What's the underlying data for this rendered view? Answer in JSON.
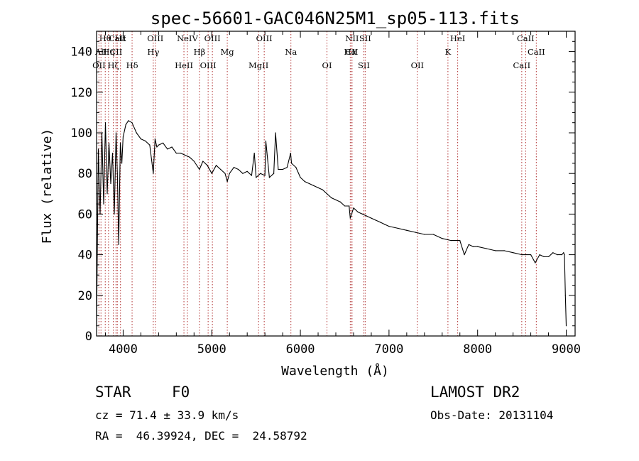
{
  "chart_data": {
    "type": "line",
    "title": "spec-56601-GAC046N25M1_sp05-113.fits",
    "xlabel": "Wavelength (Å)",
    "ylabel": "Flux (relative)",
    "xlim": [
      3700,
      9100
    ],
    "ylim": [
      0,
      150
    ],
    "x_ticks": [
      4000,
      5000,
      6000,
      7000,
      8000,
      9000
    ],
    "y_ticks": [
      0,
      20,
      40,
      60,
      80,
      100,
      120,
      140
    ],
    "grid": false,
    "series": [
      {
        "color": "#000000",
        "x": [
          3700,
          3720,
          3740,
          3760,
          3780,
          3800,
          3820,
          3840,
          3860,
          3880,
          3900,
          3920,
          3935,
          3950,
          3968,
          3985,
          4000,
          4030,
          4060,
          4100,
          4150,
          4200,
          4250,
          4300,
          4340,
          4360,
          4380,
          4400,
          4450,
          4500,
          4550,
          4600,
          4650,
          4700,
          4750,
          4800,
          4861,
          4900,
          4950,
          5000,
          5050,
          5100,
          5150,
          5175,
          5200,
          5250,
          5300,
          5350,
          5400,
          5450,
          5480,
          5500,
          5550,
          5600,
          5610,
          5650,
          5700,
          5720,
          5750,
          5800,
          5850,
          5890,
          5900,
          5950,
          6000,
          6050,
          6100,
          6150,
          6200,
          6250,
          6300,
          6350,
          6400,
          6450,
          6500,
          6550,
          6563,
          6600,
          6650,
          6700,
          6750,
          6800,
          6850,
          6900,
          6950,
          7000,
          7100,
          7200,
          7300,
          7400,
          7500,
          7600,
          7700,
          7800,
          7850,
          7900,
          7950,
          8000,
          8100,
          8200,
          8300,
          8400,
          8500,
          8600,
          8650,
          8700,
          8750,
          8800,
          8850,
          8900,
          8950,
          8970,
          8980,
          8990,
          9000
        ],
        "y": [
          5,
          92,
          60,
          100,
          65,
          105,
          70,
          95,
          75,
          90,
          60,
          100,
          80,
          45,
          95,
          85,
          98,
          104,
          106,
          105,
          100,
          97,
          96,
          94,
          80,
          97,
          93,
          94,
          95,
          92,
          93,
          90,
          90,
          89,
          88,
          86,
          82,
          86,
          84,
          80,
          84,
          82,
          80,
          76,
          80,
          83,
          82,
          80,
          81,
          79,
          90,
          78,
          80,
          79,
          96,
          78,
          80,
          100,
          82,
          82,
          83,
          90,
          85,
          83,
          78,
          76,
          75,
          74,
          73,
          72,
          70,
          68,
          67,
          66,
          64,
          64,
          58,
          63,
          61,
          60,
          59,
          58,
          57,
          56,
          55,
          54,
          53,
          52,
          51,
          50,
          50,
          48,
          47,
          47,
          40,
          45,
          44,
          44,
          43,
          42,
          42,
          41,
          40,
          40,
          36,
          40,
          39,
          39,
          41,
          40,
          40,
          41,
          40,
          20,
          5
        ]
      }
    ],
    "lines": [
      {
        "name": "Hθ",
        "wavelength": 3798
      },
      {
        "name": "Hη",
        "wavelength": 3835
      },
      {
        "name": "Hζ",
        "wavelength": 3889
      },
      {
        "name": "Hε",
        "wavelength": 3970
      },
      {
        "name": "AlI",
        "wavelength": 3750
      },
      {
        "name": "OII",
        "wavelength": 3727
      },
      {
        "name": "CaII",
        "wavelength": 3934
      },
      {
        "name": "CII",
        "wavelength": 3919
      },
      {
        "name": "Hδ",
        "wavelength": 4101
      },
      {
        "name": "OIII",
        "wavelength": 4363
      },
      {
        "name": "Hγ",
        "wavelength": 4340
      },
      {
        "name": "HeII",
        "wavelength": 4686
      },
      {
        "name": "NeIV",
        "wavelength": 4725
      },
      {
        "name": "Hβ",
        "wavelength": 4861
      },
      {
        "name": "OIII",
        "wavelength": 4959
      },
      {
        "name": "OIII",
        "wavelength": 5007
      },
      {
        "name": "Mg",
        "wavelength": 5175
      },
      {
        "name": "MgII",
        "wavelength": 5528
      },
      {
        "name": "OIII",
        "wavelength": 5592
      },
      {
        "name": "Na",
        "wavelength": 5893
      },
      {
        "name": "OI",
        "wavelength": 6300
      },
      {
        "name": "NII",
        "wavelength": 6583
      },
      {
        "name": "Hα",
        "wavelength": 6563
      },
      {
        "name": "SII",
        "wavelength": 6716
      },
      {
        "name": "SII",
        "wavelength": 6731
      },
      {
        "name": "CII",
        "wavelength": 6580
      },
      {
        "name": "OII",
        "wavelength": 7320
      },
      {
        "name": "HeI",
        "wavelength": 7775
      },
      {
        "name": "K",
        "wavelength": 7665
      },
      {
        "name": "CaII",
        "wavelength": 8498
      },
      {
        "name": "CaII",
        "wavelength": 8542
      },
      {
        "name": "CaII",
        "wavelength": 8662
      }
    ]
  },
  "info": {
    "class": "STAR",
    "subclass": "F0",
    "survey": "LAMOST DR2",
    "cz": "cz = 71.4 ± 33.9 km/s",
    "obs_date": "Obs-Date: 20131104",
    "coords": "RA =  46.39924, DEC =  24.58792"
  }
}
